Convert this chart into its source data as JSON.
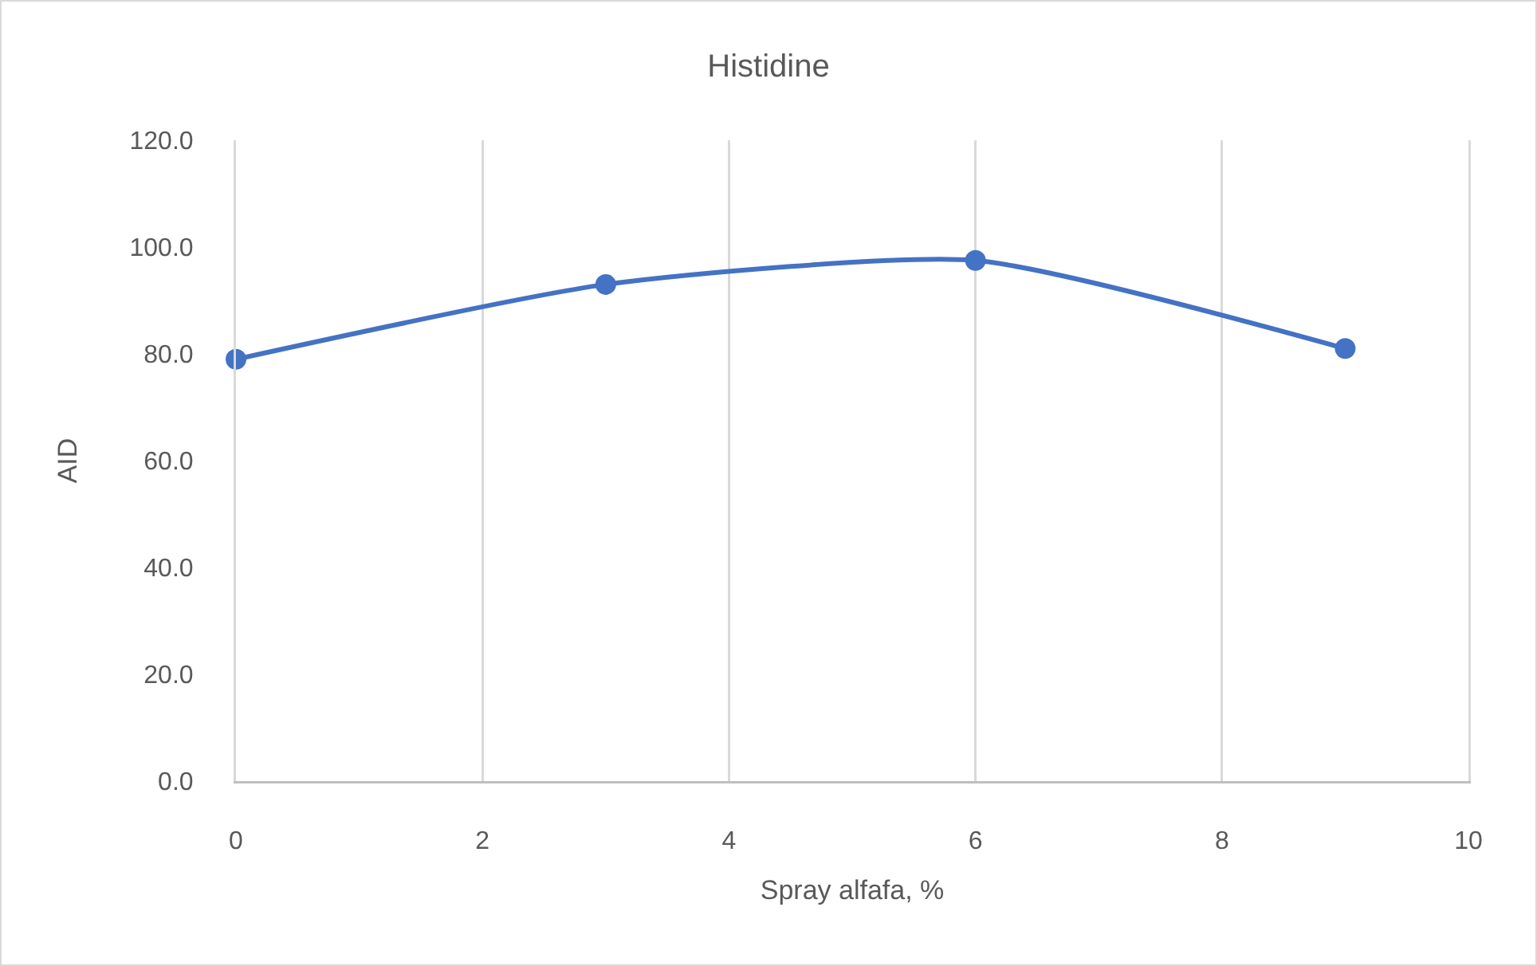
{
  "chart_data": {
    "type": "line",
    "title": "Histidine",
    "xlabel": "Spray alfafa, %",
    "ylabel": "AID",
    "x": [
      0,
      3,
      6,
      9
    ],
    "series": [
      {
        "color": "#4472c4",
        "values": [
          79,
          93,
          97.5,
          81
        ]
      }
    ],
    "xlim": [
      0,
      10
    ],
    "xticks": [
      0,
      2,
      4,
      6,
      8,
      10
    ],
    "ylim": [
      0,
      120
    ],
    "yticks": [
      {
        "value": 0,
        "label": "0.0"
      },
      {
        "value": 20,
        "label": "20.0"
      },
      {
        "value": 40,
        "label": "40.0"
      },
      {
        "value": 60,
        "label": "60.0"
      },
      {
        "value": 80,
        "label": "80.0"
      },
      {
        "value": 100,
        "label": "100.0"
      },
      {
        "value": 120,
        "label": "120.0"
      }
    ],
    "grid": "x",
    "marker": "circle",
    "line_style": "solid"
  }
}
